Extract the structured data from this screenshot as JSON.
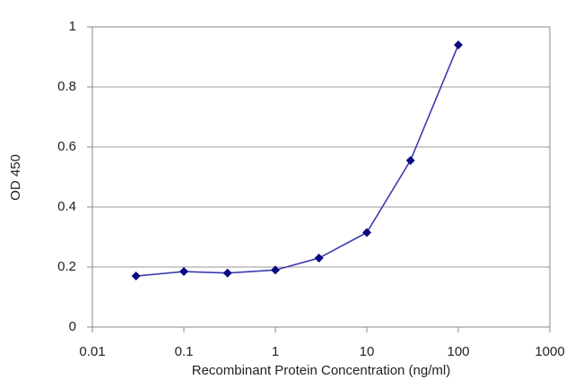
{
  "chart_data": {
    "type": "line",
    "x_label": "Recombinant Protein Concentration (ng/ml)",
    "y_label": "OD 450",
    "x": [
      0.03,
      0.1,
      0.3,
      1,
      3,
      10,
      30,
      100
    ],
    "series": [
      {
        "name": "OD 450",
        "color": "#3b3bb0",
        "marker_color": "#0a0a80",
        "values": [
          0.17,
          0.185,
          0.18,
          0.19,
          0.23,
          0.315,
          0.555,
          0.94
        ]
      }
    ],
    "xscale": "log",
    "xlim": [
      0.01,
      1000
    ],
    "xticks": [
      0.01,
      0.1,
      1,
      10,
      100,
      1000
    ],
    "ylim": [
      0,
      1
    ],
    "yticks": [
      0,
      0.2,
      0.4,
      0.6,
      0.8,
      1
    ],
    "grid": true
  }
}
